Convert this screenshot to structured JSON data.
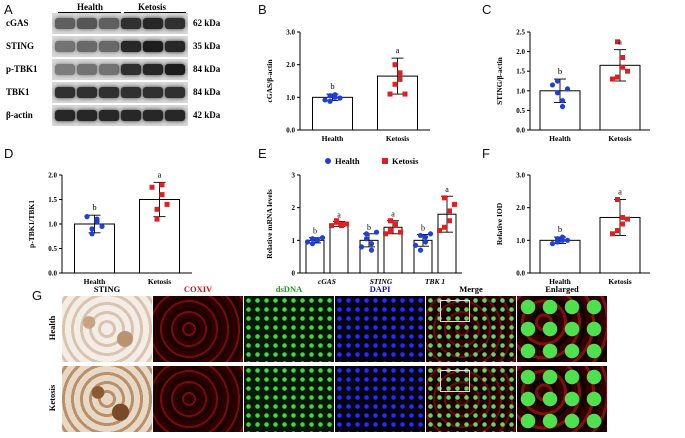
{
  "panels": {
    "A": {
      "letter": "A",
      "groups": [
        "Health",
        "Ketosis"
      ],
      "rows": [
        {
          "label": "cGAS",
          "kda": "62 kDa",
          "intensity": [
            0.55,
            0.6,
            0.55,
            0.8,
            0.85,
            0.8
          ]
        },
        {
          "label": "STING",
          "kda": "35 kDa",
          "intensity": [
            0.45,
            0.5,
            0.5,
            0.85,
            0.9,
            0.85
          ]
        },
        {
          "label": "p-TBK1",
          "kda": "84 kDa",
          "intensity": [
            0.4,
            0.45,
            0.45,
            0.8,
            0.85,
            0.9
          ]
        },
        {
          "label": "TBK1",
          "kda": "84 kDa",
          "intensity": [
            0.8,
            0.8,
            0.8,
            0.8,
            0.8,
            0.8
          ]
        },
        {
          "label": "β-actin",
          "kda": "42 kDa",
          "intensity": [
            0.85,
            0.85,
            0.85,
            0.85,
            0.85,
            0.85
          ]
        }
      ]
    },
    "B": {
      "letter": "B"
    },
    "C": {
      "letter": "C"
    },
    "D": {
      "letter": "D"
    },
    "E": {
      "letter": "E"
    },
    "F": {
      "letter": "F"
    },
    "G": {
      "letter": "G",
      "columns": [
        "STING",
        "COXIV",
        "dsDNA",
        "DAPI",
        "Merge",
        "Enlarged"
      ],
      "column_colors": [
        "#000000",
        "#d01010",
        "#10a010",
        "#1010d0",
        "#000000",
        "#000000"
      ],
      "row_labels": [
        "Health",
        "Ketosis"
      ]
    }
  },
  "colors": {
    "health": "#1f3fd8",
    "ketosis": "#e02020"
  },
  "chart_data": [
    {
      "id": "B",
      "type": "bar",
      "categories": [
        "Health",
        "Ketosis"
      ],
      "values": [
        1.0,
        1.65
      ],
      "errors": [
        0.1,
        0.55
      ],
      "points": [
        [
          0.92,
          1.05,
          1.0,
          0.88,
          1.08,
          0.98
        ],
        [
          1.1,
          2.0,
          1.55,
          1.4,
          1.75,
          1.1
        ]
      ],
      "letters": [
        "b",
        "a"
      ],
      "ylabel": "cGAS/β-actin",
      "ylim": [
        0,
        3.0
      ],
      "yticks": [
        "0.0",
        "1.0",
        "2.0",
        "3.0"
      ]
    },
    {
      "id": "C",
      "type": "bar",
      "categories": [
        "Health",
        "Ketosis"
      ],
      "values": [
        1.0,
        1.65
      ],
      "errors": [
        0.3,
        0.4
      ],
      "points": [
        [
          1.15,
          0.95,
          0.6,
          1.25,
          0.75,
          1.05
        ],
        [
          1.3,
          2.25,
          1.85,
          1.35,
          1.6,
          1.5
        ]
      ],
      "letters": [
        "b",
        "a"
      ],
      "ylabel": "STING/β-actin",
      "ylim": [
        0,
        2.5
      ],
      "yticks": [
        "0.0",
        "0.5",
        "1.0",
        "1.5",
        "2.0",
        "2.5"
      ]
    },
    {
      "id": "D",
      "type": "bar",
      "categories": [
        "Health",
        "Ketosis"
      ],
      "values": [
        1.0,
        1.5
      ],
      "errors": [
        0.18,
        0.35
      ],
      "points": [
        [
          1.15,
          0.9,
          1.05,
          0.8,
          1.1,
          0.95
        ],
        [
          1.75,
          1.3,
          1.6,
          1.1,
          1.8,
          1.4
        ]
      ],
      "letters": [
        "b",
        "a"
      ],
      "ylabel": "p-TBK1/TBK1",
      "ylim": [
        0,
        2.0
      ],
      "yticks": [
        "0.0",
        "0.5",
        "1.0",
        "1.5",
        "2.0"
      ]
    },
    {
      "id": "E",
      "type": "bar",
      "categories": [
        "cGAS",
        "STING",
        "TBK 1"
      ],
      "series": [
        {
          "name": "Health",
          "values": [
            1.0,
            1.0,
            1.0
          ],
          "errors": [
            0.08,
            0.2,
            0.18
          ],
          "points": [
            [
              0.95,
              1.05,
              1.0,
              0.9,
              1.02,
              1.08
            ],
            [
              0.8,
              1.2,
              0.9,
              1.05,
              0.7,
              1.25
            ],
            [
              0.85,
              1.15,
              0.95,
              0.7,
              1.1,
              1.2
            ]
          ]
        },
        {
          "name": "Ketosis",
          "values": [
            1.5,
            1.4,
            1.8
          ],
          "errors": [
            0.08,
            0.2,
            0.55
          ],
          "points": [
            [
              1.45,
              1.55,
              1.5,
              1.6,
              1.45,
              1.5
            ],
            [
              1.2,
              1.6,
              1.5,
              1.3,
              1.45,
              1.25
            ],
            [
              1.3,
              2.3,
              1.9,
              1.4,
              1.6,
              2.1
            ]
          ]
        }
      ],
      "letters": [
        [
          "b",
          "a"
        ],
        [
          "b",
          "a"
        ],
        [
          "b",
          "a"
        ]
      ],
      "ylabel": "Relative mRNA levels",
      "ylim": [
        0,
        3
      ],
      "yticks": [
        "0",
        "1",
        "2",
        "3"
      ],
      "legend": "top"
    },
    {
      "id": "F",
      "type": "bar",
      "categories": [
        "Health",
        "Ketosis"
      ],
      "values": [
        1.0,
        1.7
      ],
      "errors": [
        0.1,
        0.55
      ],
      "points": [
        [
          0.9,
          1.05,
          1.0,
          0.95,
          1.1,
          1.0
        ],
        [
          1.2,
          2.25,
          1.7,
          1.3,
          1.5,
          1.65
        ]
      ],
      "letters": [
        "b",
        "a"
      ],
      "ylabel": "Relative IOD",
      "ylim": [
        0,
        3.0
      ],
      "yticks": [
        "0.0",
        "1.0",
        "2.0",
        "3.0"
      ]
    }
  ]
}
